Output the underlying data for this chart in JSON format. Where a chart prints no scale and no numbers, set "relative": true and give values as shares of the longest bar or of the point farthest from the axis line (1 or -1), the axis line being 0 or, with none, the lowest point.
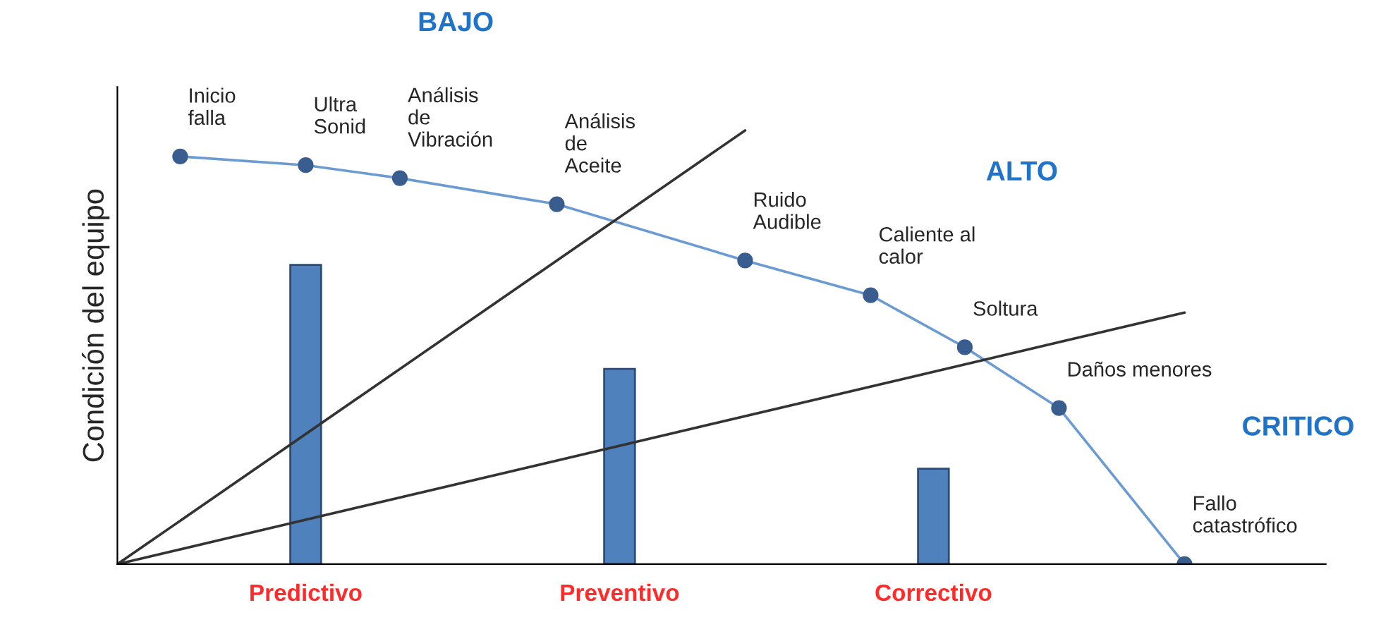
{
  "chart_data": {
    "type": "bar",
    "relative": true,
    "ylabel": "Condición del equipo",
    "categories": [
      null,
      null,
      null,
      null,
      null,
      null,
      "Predictivo",
      null,
      null,
      null,
      null,
      null,
      null,
      null,
      null,
      null,
      "Preventivo",
      null,
      null,
      null,
      null,
      null,
      null,
      null,
      null,
      null,
      "Correctivo",
      null,
      null,
      null,
      null,
      null,
      null,
      null,
      null,
      null,
      null,
      null,
      null
    ],
    "series": [
      {
        "color": "#4f81bd",
        "values": [
          null,
          null,
          null,
          null,
          null,
          null,
          0.69,
          null,
          null,
          null,
          null,
          null,
          null,
          null,
          null,
          null,
          0.45,
          null,
          null,
          null,
          null,
          null,
          null,
          null,
          null,
          null,
          0.22,
          null,
          null,
          null,
          null,
          null,
          null,
          null,
          null,
          null,
          null,
          null,
          null
        ]
      },
      {
        "type": "line",
        "color": "#6b9bd2",
        "marker": "circle",
        "values": [
          null,
          null,
          0.94,
          null,
          null,
          null,
          0.92,
          null,
          null,
          0.89,
          null,
          null,
          null,
          null,
          0.83,
          null,
          null,
          null,
          null,
          null,
          0.7,
          null,
          null,
          null,
          0.62,
          null,
          null,
          0.5,
          null,
          null,
          0.36,
          null,
          null,
          null,
          0,
          null,
          null,
          null,
          null
        ]
      },
      {
        "type": "line",
        "color": "#333333",
        "values": [
          0,
          null,
          null,
          null,
          null,
          null,
          null,
          null,
          null,
          null,
          null,
          null,
          null,
          null,
          null,
          null,
          null,
          null,
          null,
          null,
          1,
          null,
          null,
          null,
          null,
          null,
          null,
          null,
          null,
          null,
          null,
          null,
          null,
          null,
          null,
          null,
          null,
          null,
          null
        ]
      },
      {
        "type": "line",
        "color": "#333333",
        "values": [
          0,
          null,
          null,
          null,
          null,
          null,
          null,
          null,
          null,
          null,
          null,
          null,
          null,
          null,
          null,
          null,
          null,
          null,
          null,
          null,
          null,
          null,
          null,
          null,
          null,
          null,
          null,
          null,
          null,
          null,
          null,
          null,
          null,
          null,
          0.58,
          null,
          null,
          null,
          null
        ]
      }
    ],
    "annotations": [
      "BAJO",
      "ALTO",
      "CRITICO",
      "Inicio\nfalla",
      "Ultra\nSonid",
      "Análisis\nde\nVibración",
      "Análisis\nde\nAceite",
      "Ruido\nAudible",
      "Caliente al\ncalor",
      "Soltura",
      "Daños menores",
      "Fallo\ncatastrófico"
    ],
    "legend": false,
    "grid": false
  }
}
